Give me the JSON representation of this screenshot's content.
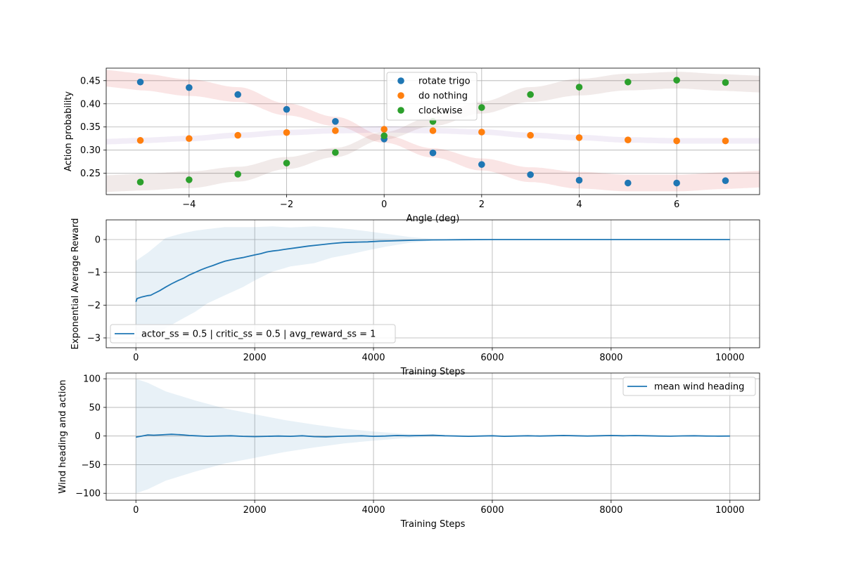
{
  "chart_data": [
    {
      "type": "scatter",
      "xlabel": "Angle (deg)",
      "ylabel": "Action probability",
      "xlim": [
        -5.7,
        7.7
      ],
      "ylim": [
        0.204,
        0.477
      ],
      "xticks": [
        -4,
        -2,
        0,
        2,
        4,
        6
      ],
      "yticks": [
        0.25,
        0.3,
        0.35,
        0.4,
        0.45
      ],
      "grid": true,
      "legend_position": "upper-center",
      "x": [
        -5,
        -4,
        -3,
        -2,
        -1,
        0,
        1,
        2,
        3,
        4,
        5,
        6,
        7
      ],
      "series": [
        {
          "name": "rotate trigo",
          "color": "#1f77b4",
          "band_color": "#d62728",
          "values": [
            0.447,
            0.435,
            0.42,
            0.388,
            0.362,
            0.324,
            0.294,
            0.269,
            0.247,
            0.235,
            0.229,
            0.229,
            0.234
          ],
          "band_half_width": [
            0.018,
            0.018,
            0.016,
            0.013,
            0.01,
            0.008,
            0.01,
            0.013,
            0.016,
            0.018,
            0.018,
            0.018,
            0.018
          ]
        },
        {
          "name": "do nothing",
          "color": "#ff7f0e",
          "band_color": "#9467bd",
          "values": [
            0.321,
            0.325,
            0.332,
            0.338,
            0.342,
            0.345,
            0.342,
            0.339,
            0.332,
            0.327,
            0.322,
            0.32,
            0.32
          ],
          "band_half_width": [
            0.006,
            0.006,
            0.006,
            0.006,
            0.006,
            0.007,
            0.006,
            0.006,
            0.006,
            0.006,
            0.006,
            0.006,
            0.006
          ]
        },
        {
          "name": "clockwise",
          "color": "#2ca02c",
          "band_color": "#8c564b",
          "values": [
            0.231,
            0.236,
            0.248,
            0.272,
            0.295,
            0.331,
            0.362,
            0.392,
            0.42,
            0.436,
            0.447,
            0.451,
            0.446
          ],
          "band_half_width": [
            0.018,
            0.018,
            0.016,
            0.013,
            0.01,
            0.008,
            0.01,
            0.013,
            0.016,
            0.018,
            0.018,
            0.018,
            0.018
          ]
        }
      ]
    },
    {
      "type": "line",
      "xlabel": "Training Steps",
      "ylabel": "Exponential Average Reward",
      "xlim": [
        -500,
        10500
      ],
      "ylim": [
        -3.3,
        0.6
      ],
      "xticks": [
        0,
        2000,
        4000,
        6000,
        8000,
        10000
      ],
      "yticks": [
        -3,
        -2,
        -1,
        0
      ],
      "grid": true,
      "legend_position": "lower-left",
      "series": [
        {
          "name": "actor_ss = 0.5 | critic_ss = 0.5 | avg_reward_ss = 1",
          "color": "#1f77b4",
          "x": [
            0,
            20,
            50,
            100,
            150,
            200,
            250,
            300,
            400,
            500,
            600,
            700,
            800,
            900,
            1000,
            1100,
            1200,
            1300,
            1400,
            1500,
            1600,
            1700,
            1800,
            1900,
            2000,
            2100,
            2200,
            2300,
            2400,
            2500,
            2700,
            2900,
            3100,
            3300,
            3500,
            3700,
            3900,
            4100,
            4300,
            4500,
            4700,
            5000,
            5500,
            6000,
            7000,
            8000,
            9000,
            10000
          ],
          "values": [
            -1.9,
            -1.8,
            -1.78,
            -1.75,
            -1.73,
            -1.71,
            -1.7,
            -1.65,
            -1.56,
            -1.45,
            -1.35,
            -1.26,
            -1.18,
            -1.08,
            -1.0,
            -0.92,
            -0.85,
            -0.79,
            -0.72,
            -0.66,
            -0.62,
            -0.58,
            -0.55,
            -0.51,
            -0.47,
            -0.43,
            -0.38,
            -0.35,
            -0.33,
            -0.3,
            -0.25,
            -0.2,
            -0.16,
            -0.12,
            -0.09,
            -0.08,
            -0.07,
            -0.05,
            -0.04,
            -0.03,
            -0.02,
            -0.01,
            -0.005,
            0.0,
            0.0,
            0.0,
            0.0,
            0.0
          ],
          "band_x": [
            0,
            200,
            500,
            800,
            1000,
            1200,
            1500,
            1800,
            2000,
            2300,
            2600,
            3000,
            3300,
            3600,
            3900,
            4200,
            4600,
            5000,
            6000,
            10000
          ],
          "band_upper": [
            -0.65,
            -0.4,
            0.05,
            0.2,
            0.27,
            0.32,
            0.38,
            0.38,
            0.38,
            0.4,
            0.37,
            0.4,
            0.37,
            0.32,
            0.25,
            0.18,
            0.08,
            0.02,
            0.0,
            0.0
          ],
          "band_lower": [
            -3.1,
            -3.0,
            -2.7,
            -2.4,
            -2.2,
            -1.95,
            -1.7,
            -1.45,
            -1.25,
            -0.98,
            -0.82,
            -0.72,
            -0.55,
            -0.45,
            -0.33,
            -0.22,
            -0.1,
            -0.03,
            0.0,
            0.0
          ]
        }
      ]
    },
    {
      "type": "line",
      "xlabel": "Training Steps",
      "ylabel": "Wind heading and action",
      "xlim": [
        -500,
        10500
      ],
      "ylim": [
        -112,
        110
      ],
      "xticks": [
        0,
        2000,
        4000,
        6000,
        8000,
        10000
      ],
      "yticks": [
        -100,
        -50,
        0,
        50,
        100
      ],
      "grid": true,
      "legend_position": "upper-right",
      "series": [
        {
          "name": "mean wind heading",
          "color": "#1f77b4",
          "x": [
            0,
            100,
            200,
            300,
            400,
            500,
            600,
            700,
            800,
            900,
            1000,
            1200,
            1400,
            1600,
            1800,
            2000,
            2200,
            2400,
            2600,
            2800,
            3000,
            3200,
            3400,
            3600,
            3800,
            4000,
            4200,
            4400,
            4600,
            4800,
            5000,
            5200,
            5400,
            5600,
            5800,
            6000,
            6200,
            6400,
            6600,
            6800,
            7000,
            7200,
            7400,
            7600,
            7800,
            8000,
            8200,
            8400,
            8600,
            8800,
            9000,
            9200,
            9400,
            9600,
            9800,
            10000
          ],
          "values": [
            -2,
            0,
            2,
            1.5,
            2,
            2.5,
            3,
            2.5,
            2,
            1,
            0.5,
            -0.5,
            0,
            0.5,
            -0.5,
            -1,
            -0.5,
            0,
            -0.5,
            0.5,
            -1,
            -1.5,
            -0.5,
            0,
            0.5,
            -0.5,
            0,
            1,
            0.5,
            1,
            1.5,
            0.5,
            0,
            -0.5,
            0,
            0.5,
            -0.5,
            0,
            0.5,
            0,
            0.5,
            1,
            0.5,
            0,
            0.5,
            1,
            0.5,
            0.8,
            0.5,
            0,
            -0.3,
            0.2,
            0.5,
            0,
            -0.2,
            0
          ]
        }
      ],
      "band": {
        "color": "#1f77b4",
        "x": [
          0,
          200,
          500,
          1000,
          1500,
          2000,
          2500,
          3000,
          3500,
          4000,
          4500,
          5000,
          5500,
          10000
        ],
        "upper": [
          100,
          93,
          78,
          62,
          48,
          38,
          28,
          20,
          13,
          8,
          4,
          1.5,
          0.5,
          0
        ],
        "lower": [
          -100,
          -93,
          -78,
          -62,
          -48,
          -38,
          -28,
          -20,
          -13,
          -8,
          -4,
          -1.5,
          -0.5,
          0
        ]
      }
    }
  ]
}
